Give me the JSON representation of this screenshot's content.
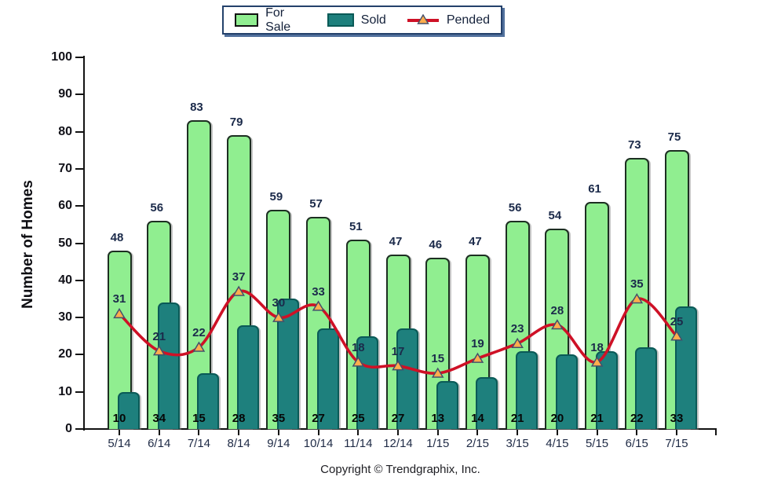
{
  "legend": {
    "items": [
      {
        "label": "For Sale",
        "type": "box",
        "color": "#90EE90"
      },
      {
        "label": "Sold",
        "type": "box",
        "color": "#1E807D"
      },
      {
        "label": "Pended",
        "type": "line-marker",
        "color": "#CE1126",
        "marker_color": "#FFAD4D"
      }
    ]
  },
  "chart_data": {
    "type": "bar",
    "title": "",
    "xlabel": "",
    "ylabel": "Number of Homes",
    "ylim": [
      0,
      100
    ],
    "y_ticks": [
      0,
      10,
      20,
      30,
      40,
      50,
      60,
      70,
      80,
      90,
      100
    ],
    "grid": false,
    "legend_position": "top-center",
    "categories": [
      "5/14",
      "6/14",
      "7/14",
      "8/14",
      "9/14",
      "10/14",
      "11/14",
      "12/14",
      "1/15",
      "2/15",
      "3/15",
      "4/15",
      "5/15",
      "6/15",
      "7/15"
    ],
    "series": [
      {
        "name": "For Sale",
        "type": "bar",
        "color": "#90EE90",
        "values": [
          48,
          56,
          83,
          79,
          59,
          57,
          51,
          47,
          46,
          47,
          56,
          54,
          61,
          73,
          75
        ]
      },
      {
        "name": "Sold",
        "type": "bar",
        "color": "#1E807D",
        "values": [
          10,
          34,
          15,
          28,
          35,
          27,
          25,
          27,
          13,
          14,
          21,
          20,
          21,
          22,
          33
        ]
      },
      {
        "name": "Pended",
        "type": "line",
        "color": "#CE1126",
        "marker": "triangle",
        "marker_color": "#FFAD4D",
        "values": [
          31,
          21,
          22,
          37,
          30,
          33,
          18,
          17,
          15,
          19,
          23,
          28,
          18,
          35,
          25
        ]
      }
    ]
  },
  "footer": {
    "copyright": "Copyright © Trendgraphix, Inc."
  }
}
